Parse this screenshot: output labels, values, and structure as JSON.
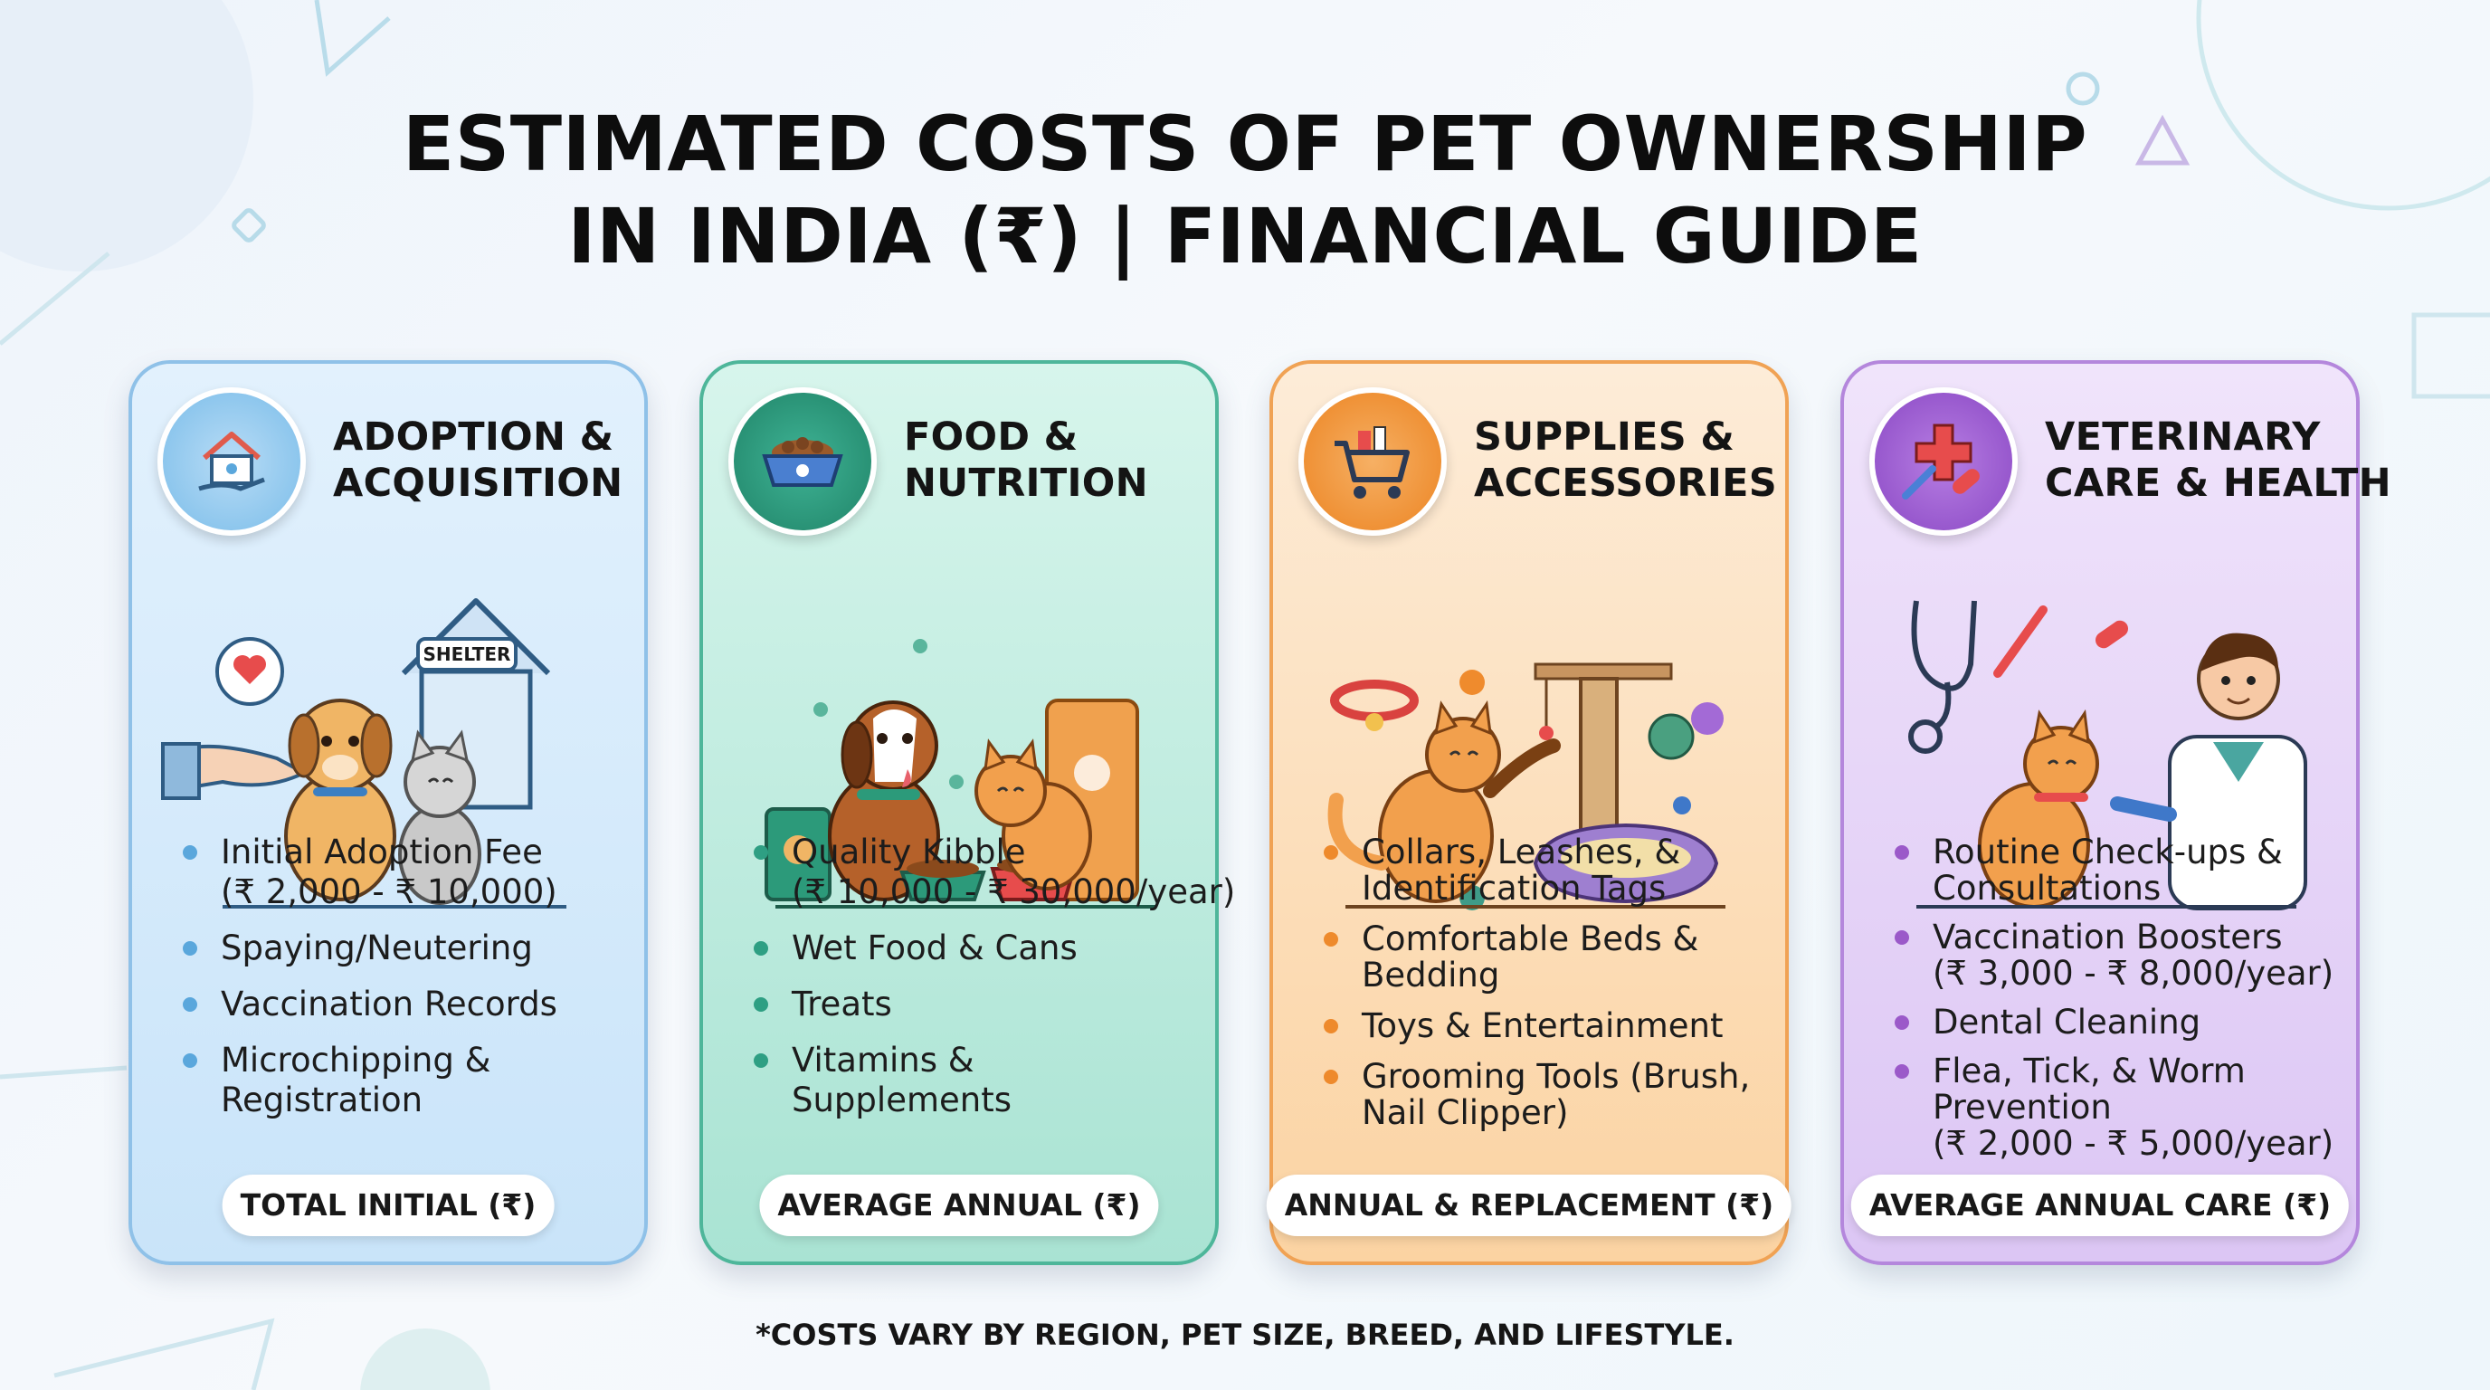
{
  "title": {
    "line1": "ESTIMATED COSTS OF PET OWNERSHIP",
    "line2": "IN INDIA (₹) | FINANCIAL GUIDE"
  },
  "cards": [
    {
      "title_line1": "ADOPTION &",
      "title_line2": "ACQUISITION",
      "icon": "house-heart-hand-icon",
      "illustration": "puppy-kitten-shelter-illustration",
      "illustration_label": "SHELTER",
      "accent": "#5aa7dc",
      "bullets": [
        {
          "lines": [
            "Initial Adoption Fee",
            "(₹ 2,000 - ₹ 10,000)"
          ]
        },
        {
          "lines": [
            "Spaying/Neutering"
          ]
        },
        {
          "lines": [
            "Vaccination Records"
          ]
        },
        {
          "lines": [
            "Microchipping &",
            "Registration"
          ]
        }
      ],
      "pill": "TOTAL INITIAL (₹)"
    },
    {
      "title_line1": "FOOD &",
      "title_line2": "NUTRITION",
      "icon": "food-bowl-icon",
      "illustration": "dog-cat-food-illustration",
      "accent": "#2e9f83",
      "bullets": [
        {
          "lines": [
            "Quality Kibble",
            "(₹ 10,000 - ₹ 30,000/year)"
          ]
        },
        {
          "lines": [
            "Wet Food & Cans"
          ]
        },
        {
          "lines": [
            "Treats"
          ]
        },
        {
          "lines": [
            "Vitamins &",
            "Supplements"
          ]
        }
      ],
      "pill": "AVERAGE ANNUAL (₹)"
    },
    {
      "title_line1": "SUPPLIES &",
      "title_line2": "ACCESSORIES",
      "icon": "shopping-cart-icon",
      "illustration": "cat-scratching-post-illustration",
      "accent": "#ee8a2c",
      "bullets": [
        {
          "lines": [
            "Collars, Leashes, &",
            "Identification Tags"
          ]
        },
        {
          "lines": [
            "Comfortable Beds &",
            "Bedding"
          ]
        },
        {
          "lines": [
            "Toys & Entertainment"
          ]
        },
        {
          "lines": [
            "Grooming Tools (Brush,",
            "Nail Clipper)"
          ]
        }
      ],
      "pill": "ANNUAL & REPLACEMENT (₹)"
    },
    {
      "title_line1": "VETERINARY",
      "title_line2": "CARE & HEALTH",
      "icon": "medical-cross-syringe-pill-icon",
      "illustration": "vet-examining-cat-illustration",
      "accent": "#9b59c9",
      "bullets": [
        {
          "lines": [
            "Routine Check-ups &",
            "Consultations"
          ]
        },
        {
          "lines": [
            "Vaccination Boosters",
            "(₹ 3,000 - ₹ 8,000/year)"
          ]
        },
        {
          "lines": [
            "Dental Cleaning"
          ]
        },
        {
          "lines": [
            "Flea, Tick, & Worm",
            "Prevention",
            "(₹ 2,000 - ₹ 5,000/year)"
          ]
        }
      ],
      "pill": "AVERAGE ANNUAL CARE (₹)"
    }
  ],
  "footnote": "*COSTS VARY BY REGION, PET SIZE, BREED, AND LIFESTYLE."
}
